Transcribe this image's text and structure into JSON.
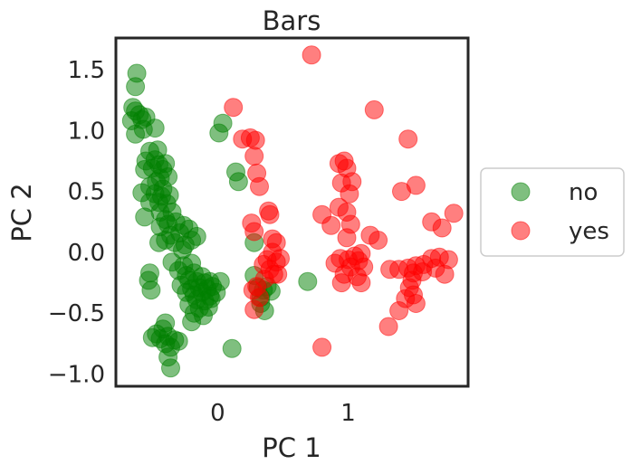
{
  "chart_data": {
    "type": "scatter",
    "title": "Bars",
    "xlabel": "PC 1",
    "ylabel": "PC 2",
    "xlim": [
      -0.78,
      1.92
    ],
    "ylim": [
      -1.1,
      1.76
    ],
    "xticks": [
      0,
      1
    ],
    "xtick_labels": [
      "0",
      "1"
    ],
    "yticks": [
      1.5,
      1.0,
      0.5,
      0.0,
      -0.5,
      -1.0
    ],
    "ytick_labels": [
      "1.5",
      "1.0",
      "0.5",
      "0.0",
      "−0.5",
      "−1.0"
    ],
    "grid": false,
    "legend_position": "right-outside",
    "marker_alpha": 0.5,
    "series": [
      {
        "name": "no",
        "color": "#008000",
        "points": [
          [
            -0.62,
            1.47
          ],
          [
            -0.63,
            1.36
          ],
          [
            -0.65,
            1.19
          ],
          [
            -0.63,
            1.16
          ],
          [
            -0.6,
            1.13
          ],
          [
            -0.66,
            1.08
          ],
          [
            -0.58,
            1.09
          ],
          [
            -0.55,
            1.11
          ],
          [
            -0.48,
            1.02
          ],
          [
            -0.57,
            1.01
          ],
          [
            -0.63,
            0.97
          ],
          [
            -0.52,
            0.83
          ],
          [
            -0.46,
            0.84
          ],
          [
            -0.55,
            0.75
          ],
          [
            -0.48,
            0.76
          ],
          [
            -0.45,
            0.72
          ],
          [
            -0.4,
            0.73
          ],
          [
            -0.42,
            0.68
          ],
          [
            -0.5,
            0.69
          ],
          [
            -0.56,
            0.68
          ],
          [
            -0.44,
            0.61
          ],
          [
            -0.38,
            0.62
          ],
          [
            -0.47,
            0.58
          ],
          [
            -0.52,
            0.54
          ],
          [
            -0.42,
            0.52
          ],
          [
            -0.58,
            0.49
          ],
          [
            -0.48,
            0.48
          ],
          [
            -0.43,
            0.46
          ],
          [
            -0.37,
            0.47
          ],
          [
            -0.45,
            0.41
          ],
          [
            -0.39,
            0.4
          ],
          [
            -0.44,
            0.33
          ],
          [
            -0.4,
            0.27
          ],
          [
            -0.52,
            0.41
          ],
          [
            -0.56,
            0.29
          ],
          [
            -0.35,
            0.33
          ],
          [
            -0.38,
            0.23
          ],
          [
            -0.44,
            0.21
          ],
          [
            -0.32,
            0.25
          ],
          [
            -0.26,
            0.22
          ],
          [
            -0.22,
            0.19
          ],
          [
            -0.29,
            0.16
          ],
          [
            -0.36,
            0.14
          ],
          [
            -0.4,
            0.1
          ],
          [
            -0.45,
            0.08
          ],
          [
            -0.33,
            0.08
          ],
          [
            -0.25,
            0.06
          ],
          [
            -0.2,
            0.1
          ],
          [
            -0.16,
            0.13
          ],
          [
            -0.27,
            0.02
          ],
          [
            -0.35,
            -0.08
          ],
          [
            -0.26,
            -0.11
          ],
          [
            -0.2,
            -0.09
          ],
          [
            -0.3,
            -0.15
          ],
          [
            -0.24,
            -0.19
          ],
          [
            -0.18,
            -0.17
          ],
          [
            -0.12,
            -0.2
          ],
          [
            -0.22,
            -0.23
          ],
          [
            -0.16,
            -0.24
          ],
          [
            -0.1,
            -0.25
          ],
          [
            -0.06,
            -0.24
          ],
          [
            -0.28,
            -0.27
          ],
          [
            -0.2,
            -0.3
          ],
          [
            -0.14,
            -0.29
          ],
          [
            -0.08,
            -0.3
          ],
          [
            -0.04,
            -0.28
          ],
          [
            -0.24,
            -0.33
          ],
          [
            -0.18,
            -0.35
          ],
          [
            -0.12,
            -0.33
          ],
          [
            -0.06,
            -0.36
          ],
          [
            -0.01,
            -0.33
          ],
          [
            -0.16,
            -0.39
          ],
          [
            -0.1,
            -0.4
          ],
          [
            -0.05,
            -0.38
          ],
          [
            -0.22,
            -0.43
          ],
          [
            -0.14,
            -0.46
          ],
          [
            -0.07,
            -0.45
          ],
          [
            -0.11,
            -0.52
          ],
          [
            -0.18,
            -0.5
          ],
          [
            -0.2,
            -0.57
          ],
          [
            -0.52,
            -0.17
          ],
          [
            -0.53,
            -0.23
          ],
          [
            -0.51,
            -0.31
          ],
          [
            -0.4,
            -0.58
          ],
          [
            -0.42,
            -0.63
          ],
          [
            -0.47,
            -0.67
          ],
          [
            -0.5,
            -0.7
          ],
          [
            -0.44,
            -0.71
          ],
          [
            -0.38,
            -0.69
          ],
          [
            -0.4,
            -0.75
          ],
          [
            -0.36,
            -0.78
          ],
          [
            -0.33,
            -0.72
          ],
          [
            -0.3,
            -0.73
          ],
          [
            -0.38,
            -0.86
          ],
          [
            -0.36,
            -0.95
          ],
          [
            0.01,
            0.98
          ],
          [
            0.04,
            1.06
          ],
          [
            0.14,
            0.66
          ],
          [
            0.16,
            0.58
          ],
          [
            0.28,
            0.08
          ],
          [
            0.28,
            -0.19
          ],
          [
            0.31,
            -0.29
          ],
          [
            0.33,
            -0.37
          ],
          [
            0.35,
            -0.31
          ],
          [
            0.38,
            -0.28
          ],
          [
            0.33,
            -0.42
          ],
          [
            0.36,
            -0.48
          ],
          [
            0.41,
            -0.32
          ],
          [
            0.69,
            -0.24
          ],
          [
            0.11,
            -0.79
          ],
          [
            0.02,
            -0.24
          ]
        ]
      },
      {
        "name": "yes",
        "color": "#ff0000",
        "points": [
          [
            0.72,
            1.62
          ],
          [
            0.12,
            1.19
          ],
          [
            0.19,
            0.93
          ],
          [
            0.25,
            0.94
          ],
          [
            0.29,
            0.92
          ],
          [
            0.28,
            0.79
          ],
          [
            0.3,
            0.65
          ],
          [
            0.32,
            0.54
          ],
          [
            0.39,
            0.34
          ],
          [
            0.4,
            0.31
          ],
          [
            0.26,
            0.24
          ],
          [
            0.28,
            0.17
          ],
          [
            0.42,
            0.11
          ],
          [
            0.45,
            0.08
          ],
          [
            0.42,
            0.0
          ],
          [
            0.38,
            -0.06
          ],
          [
            0.35,
            -0.1
          ],
          [
            0.4,
            -0.14
          ],
          [
            0.45,
            -0.08
          ],
          [
            0.48,
            -0.05
          ],
          [
            0.43,
            -0.18
          ],
          [
            0.36,
            -0.22
          ],
          [
            0.46,
            -0.18
          ],
          [
            0.27,
            -0.31
          ],
          [
            0.3,
            -0.28
          ],
          [
            0.32,
            -0.37
          ],
          [
            0.28,
            -0.47
          ],
          [
            1.2,
            1.17
          ],
          [
            1.46,
            0.93
          ],
          [
            0.93,
            0.73
          ],
          [
            0.97,
            0.75
          ],
          [
            0.99,
            0.69
          ],
          [
            0.95,
            0.57
          ],
          [
            1.03,
            0.58
          ],
          [
            1.01,
            0.48
          ],
          [
            1.52,
            0.55
          ],
          [
            1.41,
            0.5
          ],
          [
            0.8,
            0.31
          ],
          [
            0.93,
            0.37
          ],
          [
            0.99,
            0.33
          ],
          [
            0.87,
            0.22
          ],
          [
            1.02,
            0.23
          ],
          [
            0.99,
            0.12
          ],
          [
            1.17,
            0.14
          ],
          [
            1.23,
            0.1
          ],
          [
            1.64,
            0.25
          ],
          [
            1.81,
            0.32
          ],
          [
            1.72,
            0.2
          ],
          [
            0.94,
            -0.05
          ],
          [
            1.0,
            -0.06
          ],
          [
            1.05,
            -0.03
          ],
          [
            1.08,
            -0.07
          ],
          [
            1.1,
            -0.01
          ],
          [
            0.9,
            -0.09
          ],
          [
            1.02,
            -0.12
          ],
          [
            1.12,
            -0.12
          ],
          [
            0.97,
            -0.18
          ],
          [
            1.07,
            -0.2
          ],
          [
            0.95,
            -0.25
          ],
          [
            1.1,
            -0.25
          ],
          [
            1.32,
            -0.14
          ],
          [
            1.39,
            -0.14
          ],
          [
            1.46,
            -0.13
          ],
          [
            1.52,
            -0.11
          ],
          [
            1.58,
            -0.1
          ],
          [
            1.5,
            -0.17
          ],
          [
            1.49,
            -0.23
          ],
          [
            1.57,
            -0.16
          ],
          [
            1.64,
            -0.05
          ],
          [
            1.7,
            -0.04
          ],
          [
            1.77,
            -0.06
          ],
          [
            1.67,
            -0.13
          ],
          [
            1.74,
            -0.18
          ],
          [
            1.47,
            -0.29
          ],
          [
            1.5,
            -0.35
          ],
          [
            1.52,
            -0.42
          ],
          [
            1.44,
            -0.38
          ],
          [
            1.39,
            -0.48
          ],
          [
            1.31,
            -0.61
          ],
          [
            0.8,
            -0.78
          ]
        ]
      }
    ]
  }
}
